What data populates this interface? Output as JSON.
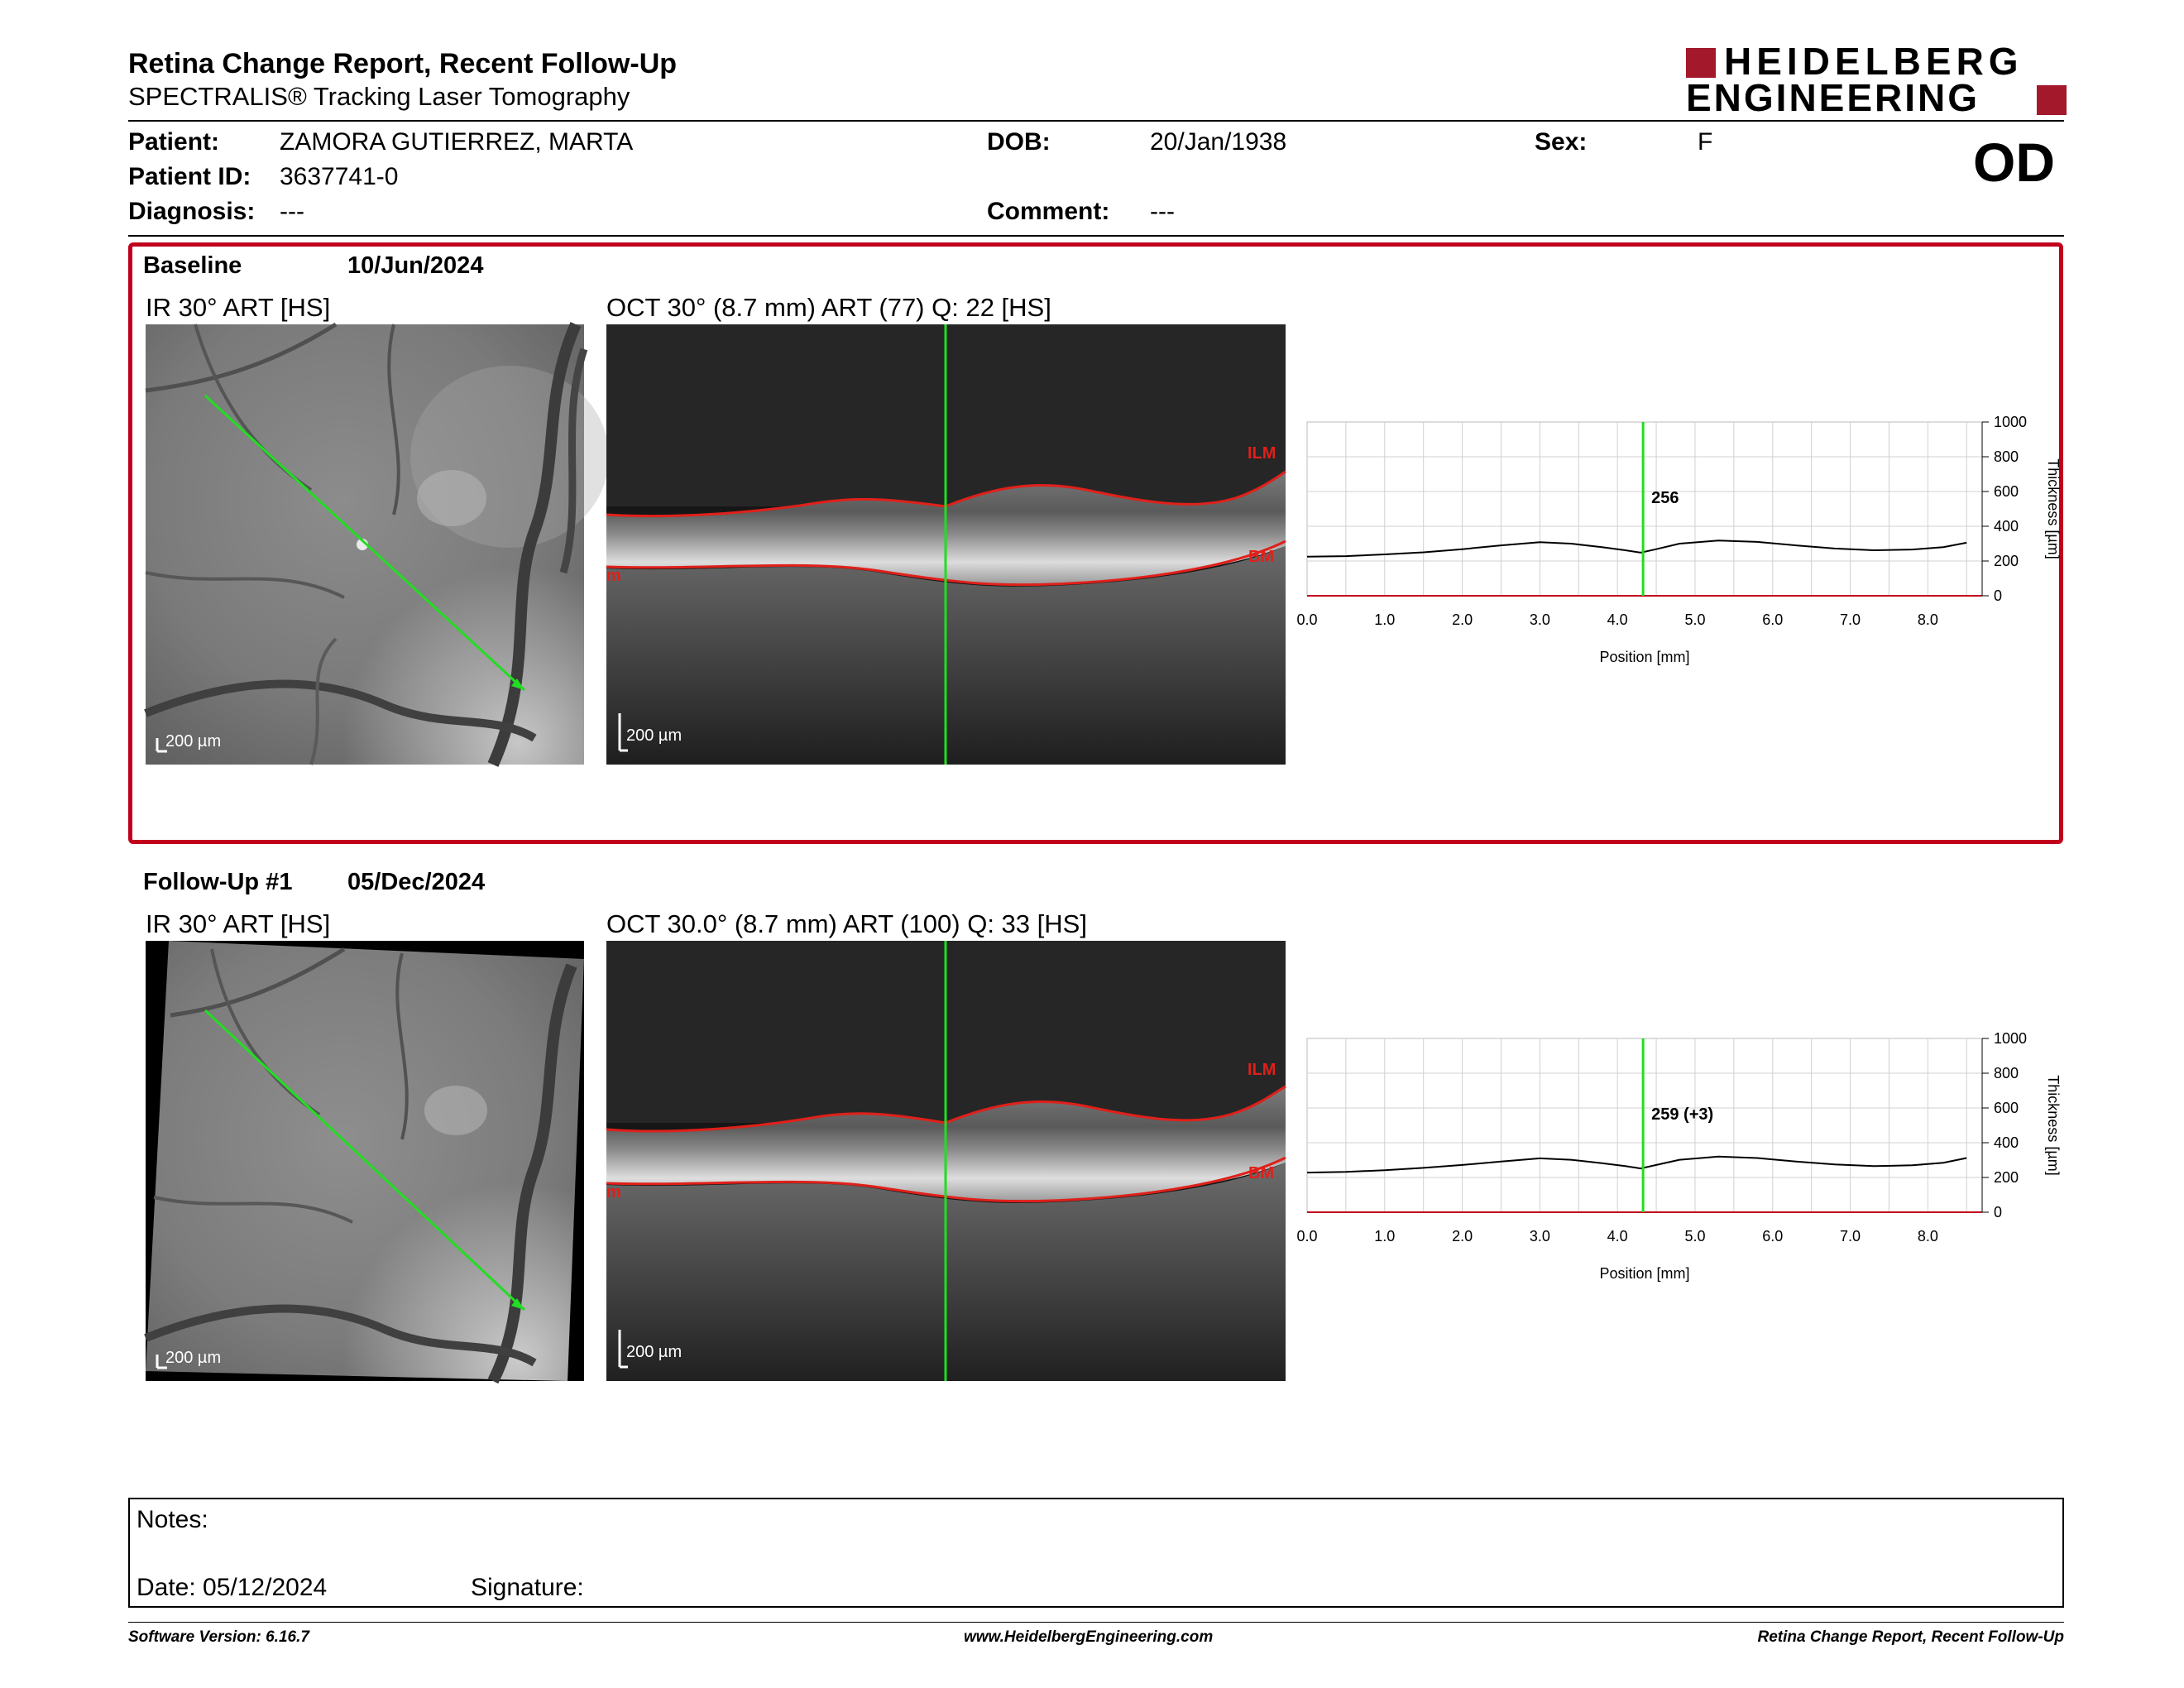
{
  "header": {
    "title": "Retina Change Report, Recent Follow-Up",
    "subtitle": "SPECTRALIS® Tracking Laser Tomography",
    "logo_line1": "HEIDELBERG",
    "logo_line2": "ENGINEERING",
    "eye": "OD"
  },
  "patient": {
    "patient_label": "Patient:",
    "patient_value": "ZAMORA GUTIERREZ, MARTA",
    "dob_label": "DOB:",
    "dob_value": "20/Jan/1938",
    "sex_label": "Sex:",
    "sex_value": "F",
    "id_label": "Patient ID:",
    "id_value": "3637741-0",
    "diagnosis_label": "Diagnosis:",
    "diagnosis_value": "---",
    "comment_label": "Comment:",
    "comment_value": "---"
  },
  "exams": [
    {
      "name": "Baseline",
      "date": "10/Jun/2024",
      "ir_title": "IR 30° ART [HS]",
      "oct_title": "OCT 30° (8.7 mm) ART (77) Q: 22 [HS]",
      "scale_ir": "200 µm",
      "scale_oct": "200 µm",
      "ilm_label": "ILM",
      "bm_label": "BM",
      "m_label": "m",
      "thickness_label": "256"
    },
    {
      "name": "Follow-Up #1",
      "date": "05/Dec/2024",
      "ir_title": "IR 30° ART [HS]",
      "oct_title": "OCT 30.0° (8.7 mm) ART (100) Q: 33 [HS]",
      "scale_ir": "200 µm",
      "scale_oct": "200 µm",
      "ilm_label": "ILM",
      "bm_label": "BM",
      "m_label": "m",
      "thickness_label": "259 (+3)"
    }
  ],
  "chart_data": [
    {
      "type": "line",
      "series": [
        {
          "x": [
            0.0,
            0.5,
            1.0,
            1.5,
            2.0,
            2.5,
            3.0,
            3.4,
            3.8,
            4.1,
            4.3,
            4.5,
            4.8,
            5.3,
            5.8,
            6.3,
            6.8,
            7.3,
            7.8,
            8.2,
            8.5
          ],
          "values": [
            225,
            228,
            238,
            250,
            268,
            290,
            308,
            300,
            280,
            262,
            248,
            268,
            300,
            318,
            310,
            290,
            272,
            262,
            266,
            280,
            305
          ]
        }
      ],
      "xlabel": "Position [mm]",
      "ylabel": "Thickness [µm]",
      "xticks": [
        "0.0",
        "1.0",
        "2.0",
        "3.0",
        "4.0",
        "5.0",
        "6.0",
        "7.0",
        "8.0"
      ],
      "yticks": [
        "0",
        "200",
        "400",
        "600",
        "800",
        "1000"
      ],
      "xlim": [
        0,
        8.7
      ],
      "ylim": [
        0,
        1000
      ],
      "marker_x": 4.33,
      "marker_label": "256",
      "grid": true
    },
    {
      "type": "line",
      "series": [
        {
          "x": [
            0.0,
            0.5,
            1.0,
            1.5,
            2.0,
            2.5,
            3.0,
            3.4,
            3.8,
            4.1,
            4.3,
            4.5,
            4.8,
            5.3,
            5.8,
            6.3,
            6.8,
            7.3,
            7.8,
            8.2,
            8.5
          ],
          "values": [
            228,
            232,
            242,
            255,
            272,
            292,
            310,
            302,
            282,
            265,
            252,
            272,
            302,
            320,
            312,
            292,
            275,
            265,
            270,
            285,
            312
          ]
        }
      ],
      "xlabel": "Position [mm]",
      "ylabel": "Thickness [µm]",
      "xticks": [
        "0.0",
        "1.0",
        "2.0",
        "3.0",
        "4.0",
        "5.0",
        "6.0",
        "7.0",
        "8.0"
      ],
      "yticks": [
        "0",
        "200",
        "400",
        "600",
        "800",
        "1000"
      ],
      "xlim": [
        0,
        8.7
      ],
      "ylim": [
        0,
        1000
      ],
      "marker_x": 4.33,
      "marker_label": "259 (+3)",
      "grid": true
    }
  ],
  "notes": {
    "notes_label": "Notes:",
    "date_label": "Date: 05/12/2024",
    "signature_label": "Signature:"
  },
  "footer": {
    "version": "Software Version: 6.16.7",
    "website": "www.HeidelbergEngineering.com",
    "report_name": "Retina Change Report, Recent Follow-Up"
  },
  "colors": {
    "frame": "#c0001c",
    "logo": "#a3182b",
    "scan_line": "#22dd22",
    "segmentation": "#e0201a"
  }
}
